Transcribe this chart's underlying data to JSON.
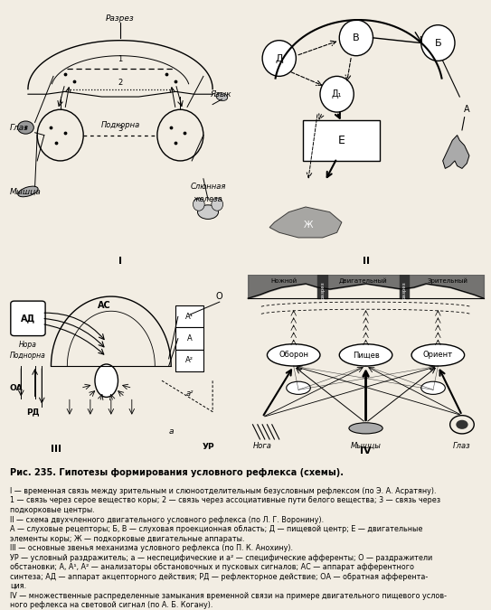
{
  "bg_color": "#f2ede3",
  "title": "Рис. 235. Гипотезы формирования условного рефлекса (схемы).",
  "caption_lines": [
    "I — временная связь между зрительным и слюноотделительным безусловным рефлексом (по Э. А. Асратяну).",
    "1 — связь через серое вещество коры; 2 — связь через ассоциативные пути белого вещества; 3 — связь через",
    "подкорковые центры.",
    "II — схема двухчленного двигательного условного рефлекса (по Л. Г. Воронину).",
    "А — слуховые рецепторы; Б, В — слуховая проекционная область; Д — пищевой центр; Е — двигательные",
    "элементы коры; Ж — подкорковые двигательные аппараты.",
    "III — основные звенья механизма условного рефлекса (по П. К. Анохину).",
    "УР — условный раздражитель; а — неспецифические и а² — специфические афференты; О — раздражители",
    "обстановки; А, А¹, А² — анализаторы обстановочных и пусковых сигналов; АС — аппарат афферентного",
    "синтеза; АД — аппарат акцепторного действия; РД — рефлекторное действие; ОА — обратная афферента-",
    "ция.",
    "IV — множественные распределенные замыкания временной связи на примере двигательного пищевого услов-",
    "ного рефлекса на световой сигнал (по А. Б. Когану)."
  ]
}
